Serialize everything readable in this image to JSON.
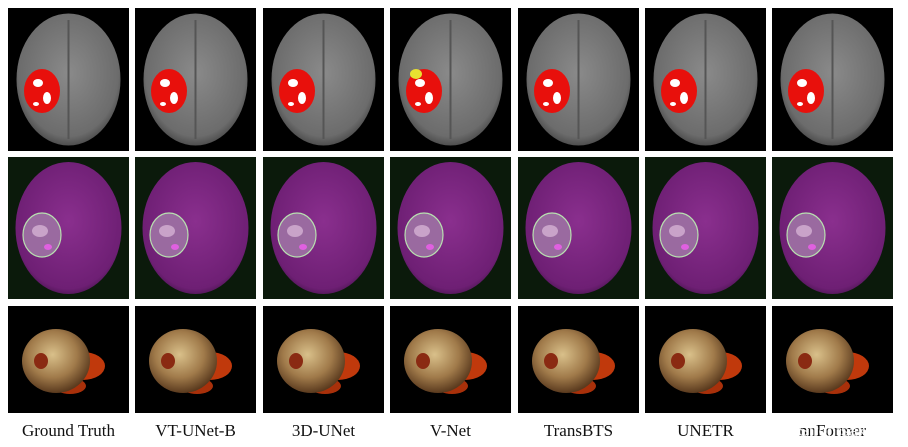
{
  "figure": {
    "columns": [
      {
        "label": "Ground Truth"
      },
      {
        "label": "VT-UNet-B"
      },
      {
        "label": "3D-UNet"
      },
      {
        "label": "V-Net"
      },
      {
        "label": "TransBTS"
      },
      {
        "label": "UNETR"
      },
      {
        "label": "nnFormer"
      }
    ],
    "watermark": "CSDN @Sfrontsake"
  }
}
